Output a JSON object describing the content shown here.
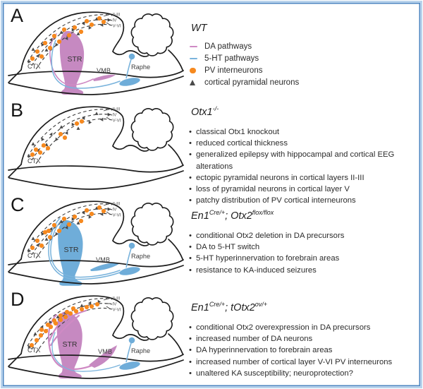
{
  "figure": {
    "colors": {
      "da": "#c689c1",
      "da_line": "#cf8ac4",
      "ht": "#6fadd9",
      "ht_line": "#79b3dc",
      "pv": "#f6891f",
      "pyramidal": "#4a4a4a",
      "outline": "#1c1c1c",
      "frame_outer": "#b9d3ec",
      "frame_inner": "#4e86c1"
    },
    "panels": [
      {
        "letter": "A",
        "title_parts": [
          {
            "t": "WT"
          }
        ],
        "legend": {
          "items": [
            {
              "marker": "dash",
              "color": "#cf8ac4",
              "label": "DA pathways"
            },
            {
              "marker": "dash",
              "color": "#79b3dc",
              "label": "5-HT pathways"
            },
            {
              "marker": "dot",
              "color": "#f6891f",
              "label": "PV interneurons"
            },
            {
              "marker": "triangle",
              "color": "#4a4a4a",
              "label": "cortical pyramidal neurons"
            }
          ]
        },
        "brain": {
          "variant": "wt",
          "labels": {
            "ctx": "CTX",
            "str": "STR",
            "vmb": "VMB",
            "raphe": "Raphe"
          },
          "layers": [
            "II-III",
            "IV",
            "V-VI"
          ]
        }
      },
      {
        "letter": "B",
        "title_parts": [
          {
            "t": "Otx1"
          },
          {
            "sup": "-/-"
          }
        ],
        "bullets": [
          "classical Otx1 knockout",
          "reduced cortical thickness",
          "generalized epilepsy with hippocampal and cortical EEG alterations",
          "ectopic pyramidal neurons in cortical layers II-III",
          "loss of pyramidal neurons in cortical layer V",
          "patchy distribution of PV cortical interneurons"
        ],
        "brain": {
          "variant": "otx1ko",
          "labels": {
            "ctx": "CTX"
          },
          "layers": [
            "II-III",
            "IV",
            "V-VI"
          ]
        }
      },
      {
        "letter": "C",
        "title_parts": [
          {
            "t": "En1"
          },
          {
            "sup": "Cre/+"
          },
          {
            "t": "; Otx2"
          },
          {
            "sup": "flox/flox"
          }
        ],
        "bullets": [
          "conditional Otx2 deletion in DA precursors",
          "DA to 5-HT switch",
          "5-HT hyperinnervation to forebrain areas",
          "resistance to KA-induced seizures"
        ],
        "brain": {
          "variant": "otx2flox",
          "labels": {
            "ctx": "CTX",
            "str": "STR",
            "vmb": "VMB",
            "raphe": "Raphe"
          },
          "layers": [
            "II-III",
            "IV",
            "V-VI"
          ]
        }
      },
      {
        "letter": "D",
        "title_parts": [
          {
            "t": "En1"
          },
          {
            "sup": "Cre/+"
          },
          {
            "t": "; tOtx2"
          },
          {
            "sup": "ov/+"
          }
        ],
        "bullets": [
          "conditional Otx2 overexpression in DA precursors",
          "increased number of DA neurons",
          "DA hyperinnervation to forebrain areas",
          "increased number of cortical layer V-VI PV interneurons",
          "unaltered KA susceptibility; neuroprotection?"
        ],
        "brain": {
          "variant": "totx2ov",
          "labels": {
            "ctx": "CTX",
            "str": "STR",
            "vmb": "VMB",
            "raphe": "Raphe"
          },
          "layers": [
            "II-III",
            "IV",
            "V-VI"
          ]
        }
      }
    ]
  }
}
